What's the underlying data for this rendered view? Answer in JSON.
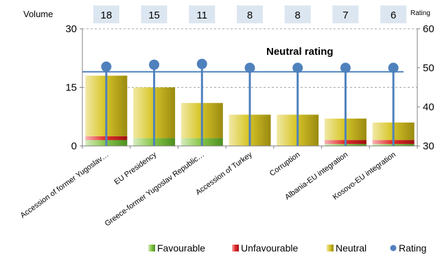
{
  "chart_data": {
    "type": "bar",
    "categories": [
      "Accession of former Yugoslav…",
      "EU Presidency",
      "Greece-former Yugoslav Republic…",
      "Accession of Turkey",
      "Corruption",
      "Albania-EU integration",
      "Kosovo-EU integration"
    ],
    "volumes": [
      18,
      15,
      11,
      8,
      8,
      7,
      6
    ],
    "series": [
      {
        "name": "Favourable",
        "values": [
          1.5,
          2,
          2,
          0,
          0,
          0.5,
          0.5
        ]
      },
      {
        "name": "Unfavourable",
        "values": [
          1,
          0,
          0,
          0,
          0,
          1,
          1
        ]
      },
      {
        "name": "Neutral",
        "values": [
          15.5,
          13,
          9,
          8,
          8,
          5.5,
          4.5
        ]
      },
      {
        "name": "Rating",
        "axis": "right",
        "values": [
          50.3,
          50.8,
          51,
          50,
          50,
          50,
          50
        ]
      }
    ],
    "left_axis": {
      "title": "Volume",
      "ylim": [
        0,
        30
      ],
      "ticks": [
        "0",
        "15",
        "30"
      ]
    },
    "right_axis": {
      "title": "Rating",
      "ylim": [
        30,
        60
      ],
      "ticks": [
        "30",
        "40",
        "50",
        "60"
      ]
    },
    "reference_line": {
      "value": 49,
      "axis": "right",
      "label": "Neutral rating"
    },
    "legend": {
      "position": "bottom-right",
      "items": [
        "Favourable",
        "Unfavourable",
        "Neutral",
        "Rating"
      ]
    },
    "colors": {
      "favourable": "#7cc242",
      "unfavourable": "#e02a2a",
      "neutral": "#d4c21e",
      "rating": "#4f81bd",
      "volume_box": "#dce6f1",
      "grid": "#a6a6a6"
    }
  }
}
